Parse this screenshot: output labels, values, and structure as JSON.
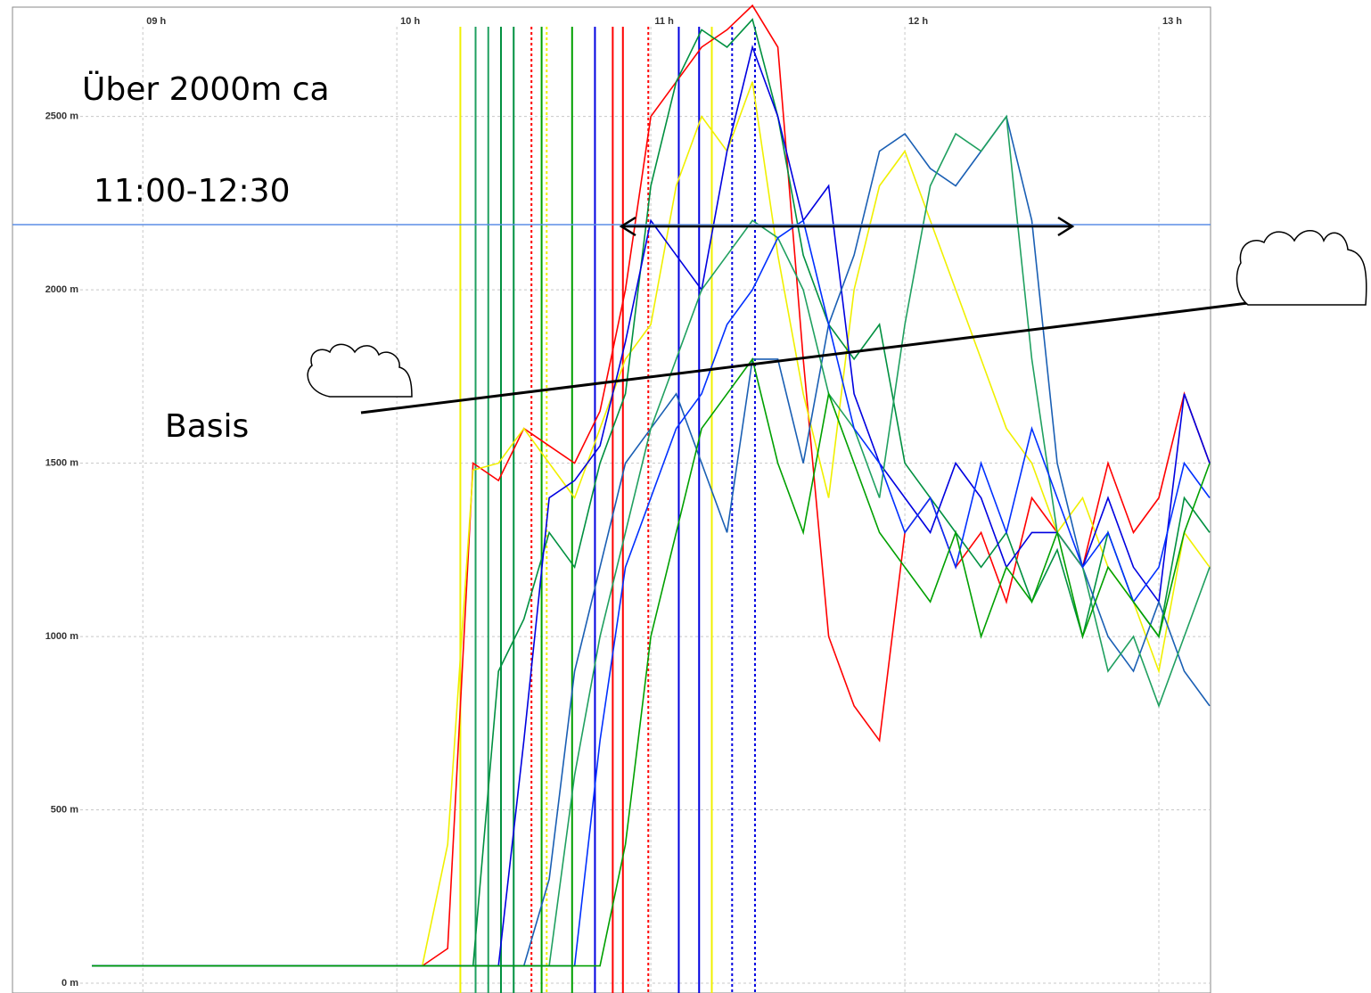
{
  "chart_data": {
    "type": "line",
    "annotations": [
      "Über 2000m ca",
      "11:00-12:30",
      "Basis"
    ],
    "x": [
      8.8,
      8.9,
      9.0,
      9.1,
      9.2,
      9.3,
      9.4,
      9.5,
      9.6,
      9.7,
      9.8,
      9.9,
      10.0,
      10.1,
      10.2,
      10.3,
      10.4,
      10.5,
      10.6,
      10.7,
      10.8,
      10.9,
      11.0,
      11.1,
      11.2,
      11.3,
      11.4,
      11.5,
      11.6,
      11.7,
      11.8,
      11.9,
      12.0,
      12.1,
      12.2,
      12.3,
      12.4,
      12.5,
      12.6,
      12.7,
      12.8,
      12.9,
      13.0,
      13.1,
      13.2
    ],
    "series": [
      {
        "color": "#ff0000",
        "values": [
          50,
          50,
          50,
          50,
          50,
          50,
          50,
          50,
          50,
          50,
          50,
          50,
          50,
          50,
          100,
          1500,
          1450,
          1600,
          1550,
          1500,
          1650,
          2000,
          2500,
          2600,
          2700,
          2750,
          2820,
          2700,
          1800,
          1000,
          800,
          700,
          1300,
          1400,
          1200,
          1300,
          1100,
          1400,
          1300,
          1200,
          1500,
          1300,
          1400,
          1700,
          1500
        ]
      },
      {
        "color": "#f0f000",
        "values": [
          50,
          50,
          50,
          50,
          50,
          50,
          50,
          50,
          50,
          50,
          50,
          50,
          50,
          50,
          400,
          1480,
          1500,
          1600,
          1500,
          1400,
          1600,
          1800,
          1900,
          2300,
          2500,
          2400,
          2600,
          2100,
          1700,
          1400,
          2000,
          2300,
          2400,
          2200,
          2000,
          1800,
          1600,
          1500,
          1300,
          1400,
          1200,
          1100,
          900,
          1300,
          1200
        ]
      },
      {
        "color": "#009040",
        "values": [
          50,
          50,
          50,
          50,
          50,
          50,
          50,
          50,
          50,
          50,
          50,
          50,
          50,
          50,
          50,
          50,
          900,
          1050,
          1300,
          1200,
          1500,
          1700,
          2300,
          2600,
          2750,
          2700,
          2780,
          2500,
          2100,
          1900,
          1800,
          1900,
          1500,
          1400,
          1300,
          1200,
          1300,
          1100,
          1250,
          1000,
          1300,
          1100,
          1000,
          1400,
          1300
        ]
      },
      {
        "color": "#0000e0",
        "values": [
          50,
          50,
          50,
          50,
          50,
          50,
          50,
          50,
          50,
          50,
          50,
          50,
          50,
          50,
          50,
          50,
          50,
          700,
          1400,
          1450,
          1550,
          1850,
          2200,
          2100,
          2000,
          2400,
          2700,
          2500,
          2200,
          2300,
          1700,
          1500,
          1400,
          1300,
          1500,
          1400,
          1200,
          1300,
          1300,
          1200,
          1400,
          1200,
          1100,
          1700,
          1500
        ]
      },
      {
        "color": "#1a5fb4",
        "values": [
          50,
          50,
          50,
          50,
          50,
          50,
          50,
          50,
          50,
          50,
          50,
          50,
          50,
          50,
          50,
          50,
          50,
          50,
          300,
          900,
          1200,
          1500,
          1600,
          1700,
          1500,
          1300,
          1800,
          1800,
          1500,
          1900,
          2100,
          2400,
          2450,
          2350,
          2300,
          2400,
          2500,
          2200,
          1500,
          1200,
          1000,
          900,
          1100,
          900,
          800
        ]
      },
      {
        "color": "#20a060",
        "values": [
          50,
          50,
          50,
          50,
          50,
          50,
          50,
          50,
          50,
          50,
          50,
          50,
          50,
          50,
          50,
          50,
          50,
          50,
          50,
          600,
          1000,
          1300,
          1600,
          1800,
          2000,
          2100,
          2200,
          2150,
          2000,
          1700,
          1600,
          1400,
          1900,
          2300,
          2450,
          2400,
          2500,
          1800,
          1300,
          1200,
          900,
          1000,
          800,
          1000,
          1200
        ]
      },
      {
        "color": "#0030ff",
        "values": [
          50,
          50,
          50,
          50,
          50,
          50,
          50,
          50,
          50,
          50,
          50,
          50,
          50,
          50,
          50,
          50,
          50,
          50,
          50,
          50,
          700,
          1200,
          1400,
          1600,
          1700,
          1900,
          2000,
          2150,
          2200,
          1900,
          1600,
          1500,
          1300,
          1400,
          1200,
          1500,
          1300,
          1600,
          1400,
          1200,
          1300,
          1100,
          1200,
          1500,
          1400
        ]
      },
      {
        "color": "#00a000",
        "values": [
          50,
          50,
          50,
          50,
          50,
          50,
          50,
          50,
          50,
          50,
          50,
          50,
          50,
          50,
          50,
          50,
          50,
          50,
          50,
          50,
          50,
          400,
          1000,
          1300,
          1600,
          1700,
          1800,
          1500,
          1300,
          1700,
          1500,
          1300,
          1200,
          1100,
          1300,
          1000,
          1200,
          1100,
          1300,
          1000,
          1200,
          1100,
          1000,
          1300,
          1500
        ]
      }
    ],
    "markers": [
      {
        "x": 10.25,
        "color": "#f0f000",
        "dashed": false
      },
      {
        "x": 10.31,
        "color": "#20a060",
        "dashed": false
      },
      {
        "x": 10.36,
        "color": "#20a060",
        "dashed": false
      },
      {
        "x": 10.41,
        "color": "#009040",
        "dashed": false
      },
      {
        "x": 10.46,
        "color": "#009040",
        "dashed": false
      },
      {
        "x": 10.53,
        "color": "#ff0000",
        "dashed": true
      },
      {
        "x": 10.57,
        "color": "#00a000",
        "dashed": false
      },
      {
        "x": 10.59,
        "color": "#f0f000",
        "dashed": true
      },
      {
        "x": 10.69,
        "color": "#00a000",
        "dashed": false
      },
      {
        "x": 10.78,
        "color": "#0000e0",
        "dashed": false
      },
      {
        "x": 10.85,
        "color": "#ff0000",
        "dashed": false
      },
      {
        "x": 10.89,
        "color": "#ff0000",
        "dashed": false
      },
      {
        "x": 10.99,
        "color": "#ff0000",
        "dashed": true
      },
      {
        "x": 11.11,
        "color": "#0000e0",
        "dashed": false
      },
      {
        "x": 11.19,
        "color": "#0000e0",
        "dashed": false
      },
      {
        "x": 11.24,
        "color": "#f0f000",
        "dashed": false
      },
      {
        "x": 11.32,
        "color": "#0000e0",
        "dashed": true
      },
      {
        "x": 11.41,
        "color": "#0000e0",
        "dashed": true
      }
    ],
    "xlim": [
      8.75,
      13.2
    ],
    "ylim": [
      0,
      2800
    ],
    "xticks": [
      {
        "value": 9,
        "label": "09 h"
      },
      {
        "value": 10,
        "label": "10 h"
      },
      {
        "value": 11,
        "label": "11 h"
      },
      {
        "value": 12,
        "label": "12 h"
      },
      {
        "value": 13,
        "label": "13 h"
      }
    ],
    "yticks": [
      {
        "value": 0,
        "label": "0 m"
      },
      {
        "value": 500,
        "label": "500 m"
      },
      {
        "value": 1000,
        "label": "1000 m"
      },
      {
        "value": 1500,
        "label": "1500 m"
      },
      {
        "value": 2000,
        "label": "2000 m"
      },
      {
        "value": 2500,
        "label": "2500 m"
      }
    ],
    "grid": true
  }
}
